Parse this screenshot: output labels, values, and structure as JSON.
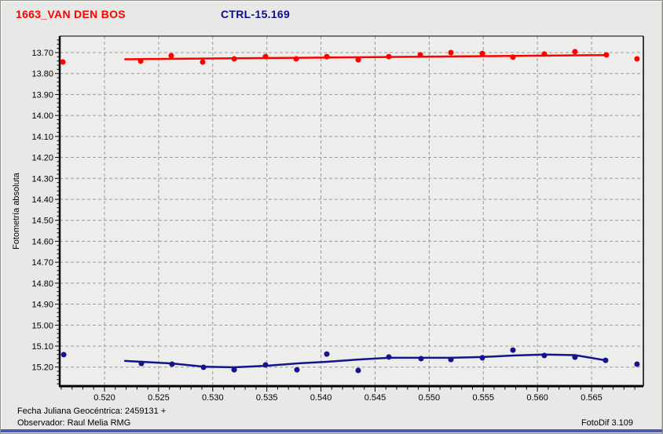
{
  "header": {
    "object_title": "1663_VAN DEN BOS",
    "object_title_color": "#ff0000",
    "control_title": "CTRL-15.169",
    "control_title_color": "#0d0d8c"
  },
  "footer": {
    "julian_date_label": "Fecha Juliana Geocéntrica: 2459131 +",
    "observer_label": "Observador: Raul Melia RMG",
    "app_version": "FotoDif 3.109"
  },
  "colors": {
    "window_background": "#e8e8e6",
    "plot_background": "#ededec",
    "grid": "#9a9a9a",
    "axis": "#000000",
    "target_series": "#ff0000",
    "control_series": "#14148c",
    "bottom_bar": "#4a58ae"
  },
  "chart_data": {
    "type": "scatter",
    "title": "1663_VAN DEN BOS",
    "subtitle": "CTRL-15.169",
    "xlabel": "",
    "ylabel": "Fotometría absoluta",
    "grid": true,
    "y_axis_inverted_magnitudes": true,
    "xlim": [
      0.51586,
      0.56979
    ],
    "ylim": [
      13.6214,
      15.291
    ],
    "x_ticks": [
      0.52,
      0.525,
      0.53,
      0.535,
      0.54,
      0.545,
      0.55,
      0.555,
      0.56,
      0.565
    ],
    "x_tick_labels": [
      "0.520",
      "0.525",
      "0.530",
      "0.535",
      "0.540",
      "0.545",
      "0.550",
      "0.555",
      "0.560",
      "0.565"
    ],
    "x_minor_step": 0.001,
    "y_ticks": [
      13.7,
      13.8,
      13.9,
      14.0,
      14.1,
      14.2,
      14.3,
      14.4,
      14.5,
      14.6,
      14.7,
      14.8,
      14.9,
      15.0,
      15.1,
      15.2
    ],
    "y_tick_labels": [
      "13.70",
      "13.80",
      "13.90",
      "14.00",
      "14.10",
      "14.20",
      "14.30",
      "14.40",
      "14.50",
      "14.60",
      "14.70",
      "14.80",
      "14.90",
      "15.00",
      "15.10",
      "15.20"
    ],
    "y_minor_step": 0.02,
    "series": [
      {
        "name": "target-1663-van-den-bos",
        "color": "#ff0000",
        "marker_radius": 3.5,
        "points": [
          [
            0.51615,
            13.745
          ],
          [
            0.52334,
            13.741
          ],
          [
            0.52617,
            13.715
          ],
          [
            0.52907,
            13.745
          ],
          [
            0.53198,
            13.73
          ],
          [
            0.53488,
            13.719
          ],
          [
            0.53771,
            13.73
          ],
          [
            0.54054,
            13.719
          ],
          [
            0.54344,
            13.734
          ],
          [
            0.54627,
            13.719
          ],
          [
            0.54918,
            13.711
          ],
          [
            0.55201,
            13.7
          ],
          [
            0.55491,
            13.704
          ],
          [
            0.55774,
            13.722
          ],
          [
            0.56064,
            13.707
          ],
          [
            0.56347,
            13.696
          ],
          [
            0.56637,
            13.711
          ],
          [
            0.5692,
            13.73
          ]
        ],
        "fit_line": [
          [
            0.5219,
            13.732
          ],
          [
            0.5664,
            13.712
          ]
        ]
      },
      {
        "name": "control-ctrl-15-169",
        "color": "#14148c",
        "marker_radius": 3.5,
        "points": [
          [
            0.51623,
            15.141
          ],
          [
            0.52341,
            15.183
          ],
          [
            0.52624,
            15.186
          ],
          [
            0.52915,
            15.201
          ],
          [
            0.53198,
            15.213
          ],
          [
            0.53488,
            15.19
          ],
          [
            0.53778,
            15.213
          ],
          [
            0.54054,
            15.138
          ],
          [
            0.54344,
            15.216
          ],
          [
            0.54627,
            15.152
          ],
          [
            0.54925,
            15.16
          ],
          [
            0.55201,
            15.164
          ],
          [
            0.55491,
            15.156
          ],
          [
            0.55774,
            15.119
          ],
          [
            0.56064,
            15.145
          ],
          [
            0.56347,
            15.153
          ],
          [
            0.5663,
            15.168
          ],
          [
            0.5692,
            15.186
          ]
        ],
        "fit_line": [
          [
            0.5219,
            15.171
          ],
          [
            0.52624,
            15.183
          ],
          [
            0.52915,
            15.198
          ],
          [
            0.53198,
            15.201
          ],
          [
            0.53488,
            15.194
          ],
          [
            0.53778,
            15.183
          ],
          [
            0.54054,
            15.175
          ],
          [
            0.54344,
            15.164
          ],
          [
            0.54627,
            15.156
          ],
          [
            0.54925,
            15.156
          ],
          [
            0.55201,
            15.156
          ],
          [
            0.55491,
            15.152
          ],
          [
            0.55774,
            15.145
          ],
          [
            0.56064,
            15.14
          ],
          [
            0.56347,
            15.143
          ],
          [
            0.5663,
            15.168
          ]
        ]
      }
    ]
  }
}
